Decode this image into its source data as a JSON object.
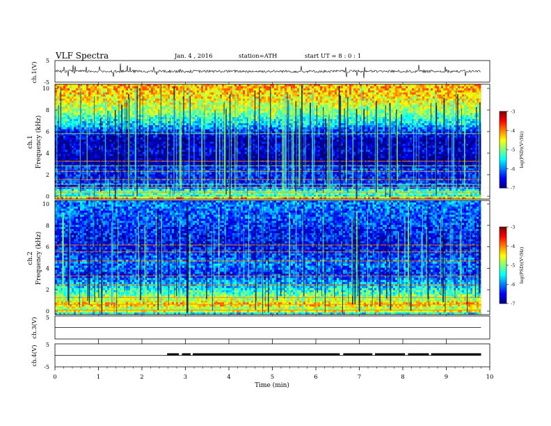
{
  "header": {
    "title": "VLF  Spectra",
    "date": "Jan. 4  , 2016",
    "station": "station=ATH",
    "start_ut": "start  UT  =   8  : 0  : 1"
  },
  "x_axis": {
    "label": "Time  (min)",
    "range": [
      0,
      10
    ],
    "ticks": [
      "0",
      "1",
      "2",
      "3",
      "4",
      "5",
      "6",
      "7",
      "8",
      "9",
      "10"
    ]
  },
  "chart_data": [
    {
      "type": "line",
      "id": "ch1-waveform",
      "ylabel": "ch.1(V)",
      "ylim": [
        -5,
        5
      ],
      "yticks": [
        "5",
        "-5"
      ],
      "x_range_min": [
        0,
        9.8
      ],
      "baseline_v": 0.0,
      "noise_amplitude_v": 0.6,
      "spike_amplitude_v": 3.5
    },
    {
      "type": "heatmap",
      "id": "ch1-spectrogram",
      "ylabel_line1": "ch.1",
      "ylabel_line2": "Frequency  (kHz)",
      "ylim": [
        0,
        10
      ],
      "yticks": [
        "0",
        "2",
        "4",
        "6",
        "8",
        "10"
      ],
      "x_range_min": [
        0,
        9.8
      ],
      "colorbar": {
        "label": "log(PSD)(V²/Hz)",
        "range": [
          -7,
          -3
        ],
        "ticks": [
          "-3",
          "-4",
          "-5",
          "-6",
          "-7"
        ]
      },
      "profile_log_psd": [
        [
          0.0,
          -3.6
        ],
        [
          0.3,
          -5.6
        ],
        [
          0.6,
          -4.9
        ],
        [
          1.0,
          -6.1
        ],
        [
          1.4,
          -6.3
        ],
        [
          2.0,
          -6.4
        ],
        [
          2.6,
          -6.2
        ],
        [
          3.0,
          -6.8
        ],
        [
          3.6,
          -6.9
        ],
        [
          4.2,
          -6.6
        ],
        [
          5.0,
          -6.8
        ],
        [
          5.8,
          -6.4
        ],
        [
          6.4,
          -5.7
        ],
        [
          7.0,
          -5.3
        ],
        [
          7.6,
          -4.9
        ],
        [
          8.4,
          -4.6
        ],
        [
          9.2,
          -4.3
        ],
        [
          10.0,
          -4.2
        ]
      ],
      "line_kHz": [
        0.2,
        0.6,
        1.0,
        1.3,
        1.7,
        2.4,
        2.9,
        3.3,
        5.7
      ],
      "sferic_count": 150
    },
    {
      "type": "heatmap",
      "id": "ch2-spectrogram",
      "ylabel_line1": "ch.2",
      "ylabel_line2": "Frequency  (kHz)",
      "ylim": [
        0,
        10
      ],
      "yticks": [
        "0",
        "2",
        "4",
        "6",
        "8",
        "10"
      ],
      "x_range_min": [
        0,
        9.8
      ],
      "colorbar": {
        "label": "log(PSD)(V²/Hz)",
        "range": [
          -7,
          -3
        ],
        "ticks": [
          "-3",
          "-4",
          "-5",
          "-6",
          "-7"
        ]
      },
      "profile_log_psd": [
        [
          0.0,
          -6.5
        ],
        [
          0.2,
          -4.4
        ],
        [
          0.5,
          -4.9
        ],
        [
          0.9,
          -4.2
        ],
        [
          1.2,
          -4.5
        ],
        [
          1.6,
          -5.0
        ],
        [
          2.0,
          -5.3
        ],
        [
          2.5,
          -5.7
        ],
        [
          3.0,
          -5.9
        ],
        [
          3.5,
          -6.4
        ],
        [
          4.0,
          -6.1
        ],
        [
          4.5,
          -6.0
        ],
        [
          5.0,
          -6.2
        ],
        [
          5.6,
          -6.4
        ],
        [
          6.2,
          -6.5
        ],
        [
          7.0,
          -6.4
        ],
        [
          8.0,
          -6.2
        ],
        [
          9.0,
          -6.1
        ],
        [
          10.0,
          -6.0
        ]
      ],
      "line_kHz": [
        0.4,
        0.9,
        1.2,
        1.5,
        2.6,
        3.4,
        4.7,
        5.5,
        6.1
      ],
      "sferic_count": 110
    },
    {
      "type": "line",
      "id": "ch3-waveform",
      "ylabel": "ch.3(V)",
      "ylim": [
        -5,
        5
      ],
      "yticks": [
        "5"
      ],
      "x_range_min": [
        0,
        9.8
      ],
      "baseline_v": 0.0
    },
    {
      "type": "line",
      "id": "ch4-waveform",
      "ylabel": "ch.4(V)",
      "ylim": [
        -5,
        5
      ],
      "yticks": [
        "5",
        "-5"
      ],
      "x_range_min": [
        0,
        9.8
      ],
      "baseline_v": 0.0,
      "pulse_start_min": 2.58,
      "pulse_end_min": 9.8,
      "pulse_level_v": 0.9,
      "gaps_min": [
        [
          2.85,
          2.92
        ],
        [
          3.12,
          3.17
        ],
        [
          6.55,
          6.63
        ],
        [
          7.3,
          7.36
        ],
        [
          8.05,
          8.12
        ],
        [
          8.6,
          8.65
        ]
      ]
    }
  ]
}
